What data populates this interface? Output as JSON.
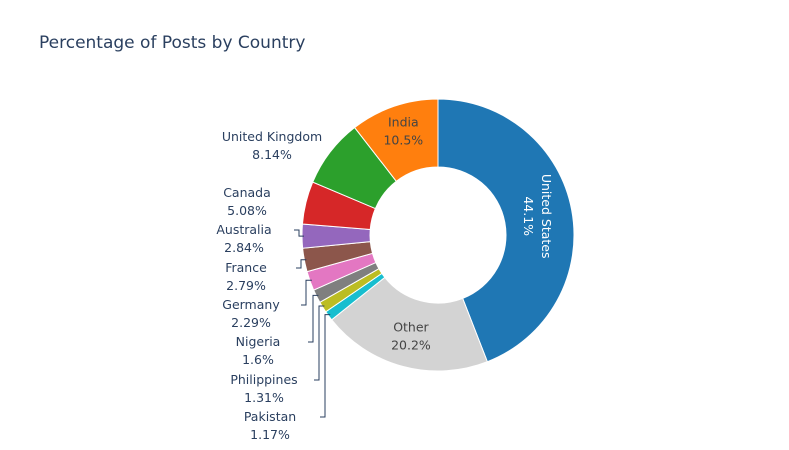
{
  "chart_data": {
    "type": "pie",
    "hole": true,
    "title": "Percentage of Posts by Country",
    "slices": [
      {
        "label": "United States",
        "value": 44.1,
        "text": "44.1%",
        "color": "#1f77b4"
      },
      {
        "label": "Other",
        "value": 20.2,
        "text": "20.2%",
        "color": "#d3d3d3"
      },
      {
        "label": "Pakistan",
        "value": 1.17,
        "text": "1.17%",
        "color": "#17becf"
      },
      {
        "label": "Philippines",
        "value": 1.31,
        "text": "1.31%",
        "color": "#bcbd22"
      },
      {
        "label": "Nigeria",
        "value": 1.6,
        "text": "1.6%",
        "color": "#7f7f7f"
      },
      {
        "label": "Germany",
        "value": 2.29,
        "text": "2.29%",
        "color": "#e377c2"
      },
      {
        "label": "France",
        "value": 2.79,
        "text": "2.79%",
        "color": "#8c564b"
      },
      {
        "label": "Australia",
        "value": 2.84,
        "text": "2.84%",
        "color": "#9467bd"
      },
      {
        "label": "Canada",
        "value": 5.08,
        "text": "5.08%",
        "color": "#d62728"
      },
      {
        "label": "United Kingdom",
        "value": 8.14,
        "text": "8.14%",
        "color": "#2ca02c"
      },
      {
        "label": "India",
        "value": 10.5,
        "text": "10.5%",
        "color": "#ff7f0e"
      }
    ]
  }
}
